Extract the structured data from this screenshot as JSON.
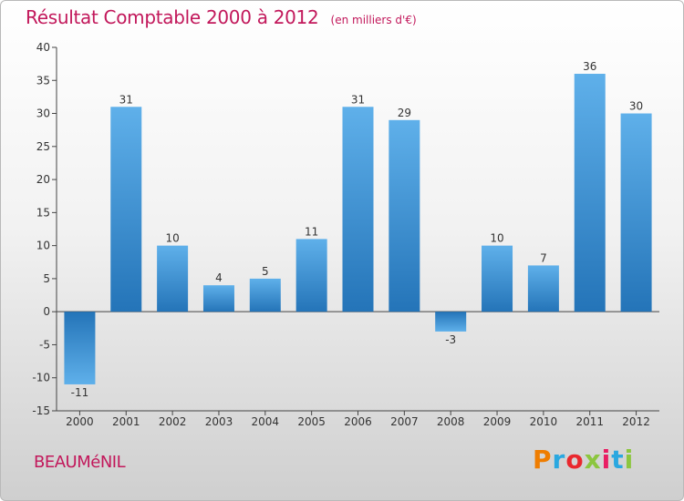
{
  "header": {
    "title": "Résultat Comptable 2000 à 2012",
    "subtitle": "(en milliers d'€)"
  },
  "footer": {
    "commune": "BEAUMéNIL",
    "logo_text": "Proxiti"
  },
  "colors": {
    "title": "#c2185b",
    "bar_top": "#5fb0ea",
    "bar_bottom": "#2474b8",
    "logo": [
      "#ef7d00",
      "#2aa8e0",
      "#e9282e",
      "#8cc63f",
      "#e91e63",
      "#2aa8e0",
      "#8cc63f"
    ]
  },
  "chart_data": {
    "type": "bar",
    "title": "Résultat Comptable 2000 à 2012",
    "subtitle": "(en milliers d'€)",
    "xlabel": "",
    "ylabel": "",
    "categories": [
      "2000",
      "2001",
      "2002",
      "2003",
      "2004",
      "2005",
      "2006",
      "2007",
      "2008",
      "2009",
      "2010",
      "2011",
      "2012"
    ],
    "values": [
      -11,
      31,
      10,
      4,
      5,
      11,
      31,
      29,
      -3,
      10,
      7,
      36,
      30
    ],
    "value_labels": [
      "-11",
      "31",
      "10",
      "4",
      "5",
      "11",
      "31",
      "29",
      "-3",
      "10",
      "7",
      "36",
      "30"
    ],
    "ylim": [
      -15,
      40
    ],
    "yticks": [
      -15,
      -10,
      -5,
      0,
      5,
      10,
      15,
      20,
      25,
      30,
      35,
      40
    ],
    "ytick_labels": [
      "-15",
      "-10",
      "-5",
      "0",
      "5",
      "10",
      "15",
      "20",
      "25",
      "30",
      "35",
      "40"
    ],
    "grid": false,
    "legend": "none"
  }
}
